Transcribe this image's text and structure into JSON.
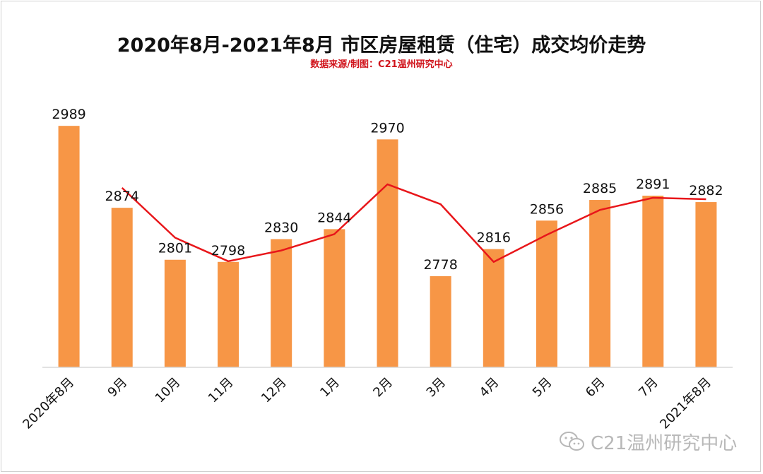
{
  "title": "2020年8月-2021年8月 市区房屋租赁（住宅）成交均价走势",
  "subtitle": "数据来源/制图：C21温州研究中心",
  "watermark": {
    "text": "C21温州研究中心",
    "icon": "wechat-icon"
  },
  "colors": {
    "bar": "#f79646",
    "line": "#e8161a",
    "title": "#111111",
    "subtitle": "#d0121a"
  },
  "chart_data": {
    "type": "bar",
    "categories": [
      "2020年8月",
      "9月",
      "10月",
      "11月",
      "12月",
      "1月",
      "2月",
      "3月",
      "4月",
      "5月",
      "6月",
      "7月",
      "2021年8月"
    ],
    "values": [
      2989,
      2874,
      2801,
      2798,
      2830,
      2844,
      2970,
      2778,
      2816,
      2856,
      2885,
      2891,
      2882
    ],
    "trend_line": [
      2902,
      2832,
      2799,
      2814,
      2837,
      2907,
      2879,
      2798,
      2836,
      2871,
      2888,
      2886
    ],
    "ylim": [
      2650,
      3010
    ],
    "grid": false,
    "legend": "none",
    "data_labels": true
  }
}
